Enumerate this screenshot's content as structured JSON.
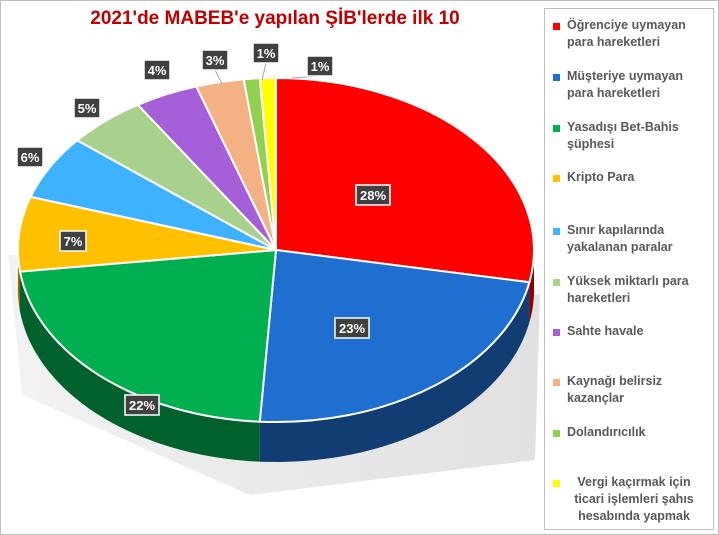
{
  "chart_data": {
    "type": "pie",
    "title": "2021'de MABEB'e yapılan ŞİB'lerde ilk 10",
    "legend_position": "right",
    "slices": [
      {
        "name": "Öğrenciye uymayan para hareketleri",
        "value": 28,
        "label": "28%",
        "color": "#ff0000"
      },
      {
        "name": "Müşteriye uymayan para hareketleri",
        "value": 23,
        "label": "23%",
        "color": "#1f6fd0"
      },
      {
        "name": "Yasadışı Bet-Bahis şüphesi",
        "value": 22,
        "label": "22%",
        "color": "#00b050"
      },
      {
        "name": "Kripto Para",
        "value": 7,
        "label": "7%",
        "color": "#ffc000"
      },
      {
        "name": "Sınır kapılarında yakalanan paralar",
        "value": 6,
        "label": "6%",
        "color": "#3eb1ff"
      },
      {
        "name": "Yüksek miktarlı para hareketleri",
        "value": 5,
        "label": "5%",
        "color": "#a9d18e"
      },
      {
        "name": "Sahte havale",
        "value": 4,
        "label": "4%",
        "color": "#a55fd9"
      },
      {
        "name": "Kaynağı belirsiz kazançlar",
        "value": 3,
        "label": "3%",
        "color": "#f4b183"
      },
      {
        "name": "Dolandırıcılık",
        "value": 1,
        "label": "1%",
        "color": "#92d050"
      },
      {
        "name": "Vergi kaçırmak için ticari işlemleri şahıs hesabında yapmak",
        "value": 1,
        "label": "1%",
        "color": "#ffff00"
      }
    ]
  }
}
